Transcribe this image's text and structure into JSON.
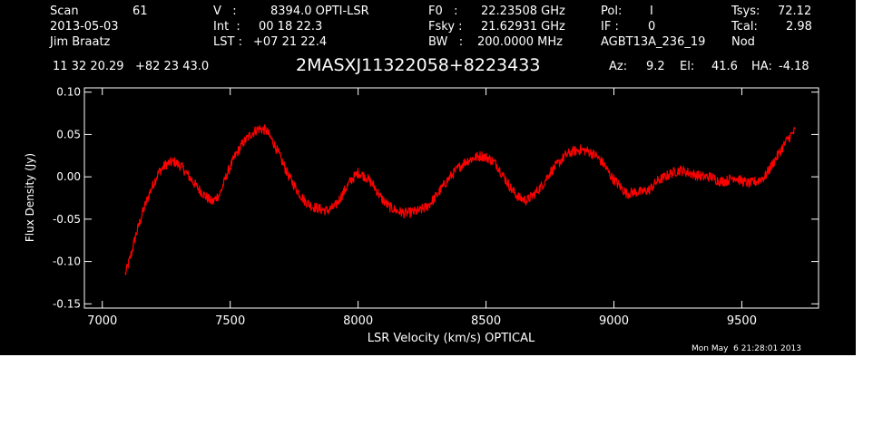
{
  "header": {
    "col1": [
      "Scan",
      "61",
      "2013-05-03",
      "Jim Braatz"
    ],
    "col2": {
      "v_label": "V   :",
      "v_value": "8394.0 OPTI-LSR",
      "int_label": "Int  :",
      "int_value": "00 18 22.3",
      "lst_label": "LST :",
      "lst_value": "+07 21 22.4"
    },
    "col3": {
      "f0_label": "F0   :",
      "f0_value": "22.23508 GHz",
      "fsky_label": "Fsky :",
      "fsky_value": "21.62931 GHz",
      "bw_label": "BW   :",
      "bw_value": "200.0000 MHz"
    },
    "col4": {
      "pol_label": "Pol:",
      "pol_value": "I",
      "if_label": "IF :",
      "if_value": "0",
      "project": "AGBT13A_236_19"
    },
    "col5": {
      "tsys_label": "Tsys:",
      "tsys_value": "72.12",
      "tcal_label": "Tcal:",
      "tcal_value": "2.98",
      "mode": "Nod"
    },
    "coords": "11 32 20.29   +82 23 43.0",
    "source": "2MASXJ11322058+8223433",
    "az_label": "Az:",
    "az_value": "9.2",
    "el_label": "El:",
    "el_value": "41.6",
    "ha_label": "HA:",
    "ha_value": "-4.18"
  },
  "footer": {
    "timestamp": "Mon May  6 21:28:01 2013"
  },
  "colors": {
    "background": "#000000",
    "axes": "#ffffff",
    "trace": "#ff0000"
  },
  "chart_data": {
    "type": "line",
    "title": "2MASXJ11322058+8223433",
    "xlabel": "LSR Velocity (km/s) OPTICAL",
    "ylabel": "Flux Density (Jy)",
    "xlim": [
      6930,
      9800
    ],
    "ylim": [
      -0.155,
      0.105
    ],
    "xticks": [
      7000,
      7500,
      8000,
      8500,
      9000,
      9500
    ],
    "xtick_labels": [
      "7000",
      "7500",
      "8000",
      "8500",
      "9000",
      "9500"
    ],
    "yticks": [
      0.1,
      0.05,
      0.0,
      -0.05,
      -0.1,
      -0.15
    ],
    "ytick_labels": [
      "0.10",
      "0.05",
      "0.00",
      "-0.05",
      "-0.10",
      "-0.15"
    ],
    "grid": false,
    "series": [
      {
        "noise": 0.006,
        "x": [
          7090,
          7110,
          7130,
          7160,
          7190,
          7220,
          7250,
          7280,
          7310,
          7340,
          7370,
          7400,
          7430,
          7460,
          7490,
          7520,
          7550,
          7580,
          7610,
          7640,
          7670,
          7700,
          7730,
          7760,
          7790,
          7820,
          7850,
          7880,
          7910,
          7940,
          7970,
          8000,
          8030,
          8060,
          8090,
          8120,
          8150,
          8180,
          8210,
          8240,
          8270,
          8300,
          8330,
          8360,
          8390,
          8420,
          8450,
          8480,
          8510,
          8540,
          8570,
          8600,
          8630,
          8660,
          8690,
          8720,
          8750,
          8780,
          8810,
          8840,
          8870,
          8900,
          8930,
          8960,
          8990,
          9020,
          9050,
          9080,
          9110,
          9140,
          9170,
          9200,
          9230,
          9260,
          9290,
          9320,
          9350,
          9380,
          9410,
          9440,
          9470,
          9500,
          9530,
          9560,
          9590,
          9620,
          9650,
          9680,
          9710
        ],
        "y": [
          -0.115,
          -0.095,
          -0.07,
          -0.04,
          -0.015,
          0.005,
          0.015,
          0.018,
          0.012,
          0.0,
          -0.012,
          -0.022,
          -0.03,
          -0.02,
          0.005,
          0.025,
          0.04,
          0.05,
          0.057,
          0.055,
          0.04,
          0.02,
          0.0,
          -0.015,
          -0.028,
          -0.035,
          -0.038,
          -0.04,
          -0.035,
          -0.02,
          -0.005,
          0.005,
          0.0,
          -0.01,
          -0.025,
          -0.035,
          -0.04,
          -0.043,
          -0.042,
          -0.04,
          -0.035,
          -0.025,
          -0.012,
          0.0,
          0.01,
          0.018,
          0.022,
          0.025,
          0.022,
          0.015,
          0.0,
          -0.015,
          -0.025,
          -0.028,
          -0.02,
          -0.01,
          0.005,
          0.015,
          0.025,
          0.03,
          0.032,
          0.03,
          0.025,
          0.015,
          0.0,
          -0.01,
          -0.02,
          -0.018,
          -0.018,
          -0.015,
          -0.005,
          0.0,
          0.005,
          0.008,
          0.005,
          0.002,
          0.0,
          0.0,
          -0.005,
          -0.005,
          0.0,
          -0.005,
          -0.008,
          -0.005,
          0.0,
          0.015,
          0.03,
          0.045,
          0.055
        ]
      }
    ]
  }
}
